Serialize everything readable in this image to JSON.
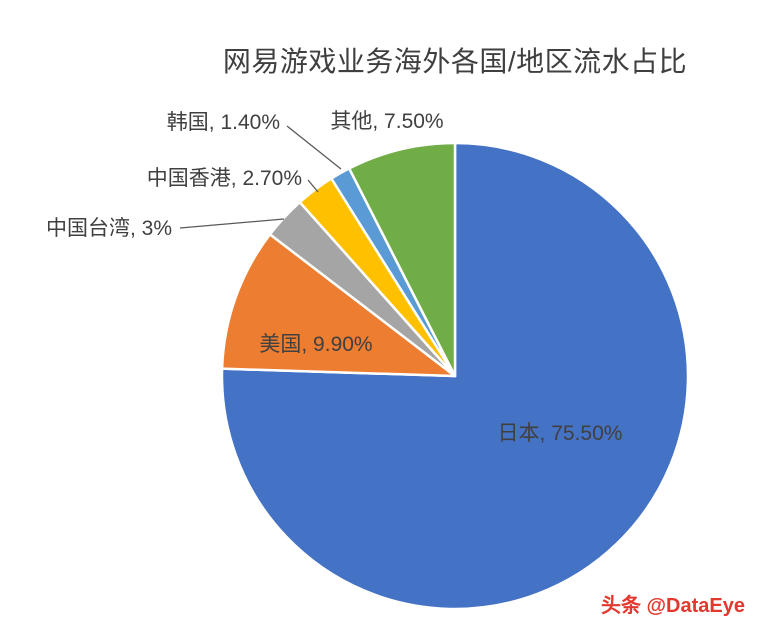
{
  "chart_data": {
    "type": "pie",
    "title": "网易游戏业务海外各国/地区流水占比",
    "categories": [
      "日本",
      "美国",
      "中国台湾",
      "中国香港",
      "韩国",
      "其他"
    ],
    "values": [
      75.5,
      9.9,
      3,
      2.7,
      1.4,
      7.5
    ],
    "labels": [
      "日本, 75.50%",
      "美国, 9.90%",
      "中国台湾, 3%",
      "中国香港, 2.70%",
      "韩国, 1.40%",
      "其他, 7.50%"
    ],
    "colors": [
      "#4472C4",
      "#ED7D31",
      "#A5A5A5",
      "#FFC000",
      "#5B9BD5",
      "#70AD47"
    ],
    "start_angle_deg": 0,
    "direction": "clockwise",
    "slice_border_color": "#FFFFFF",
    "leader_line_color": "#595959",
    "label_color": "#404040",
    "title_color": "#3f3f3f",
    "legend": "none",
    "background": "#ffffff"
  },
  "watermark": {
    "text": "头条 @DataEye",
    "color": "#e2382e"
  }
}
